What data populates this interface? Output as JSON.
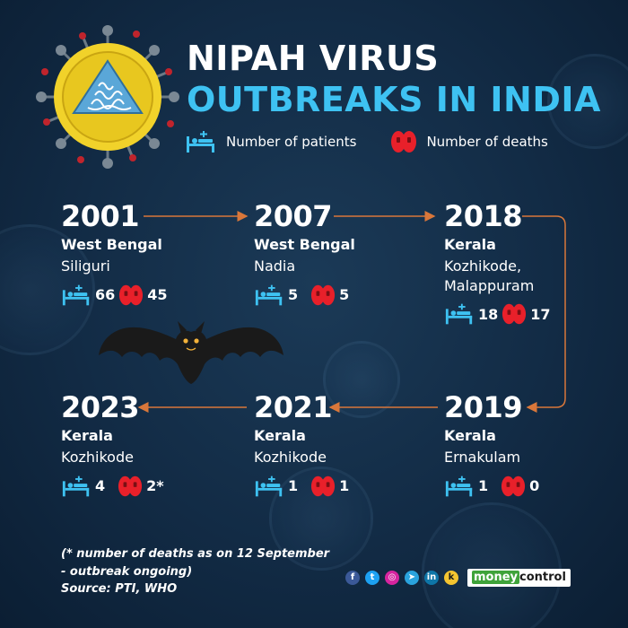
{
  "title": {
    "line1": "NIPAH VIRUS",
    "line2": "OUTBREAKS IN INDIA"
  },
  "legend": {
    "patients_label": "Number of patients",
    "deaths_label": "Number of deaths"
  },
  "outbreaks": [
    {
      "year": "2001",
      "state": "West Bengal",
      "place": "Siliguri",
      "patients": "66",
      "deaths": "45"
    },
    {
      "year": "2007",
      "state": "West Bengal",
      "place": "Nadia",
      "patients": "5",
      "deaths": "5"
    },
    {
      "year": "2018",
      "state": "Kerala",
      "place_line1": "Kozhikode,",
      "place_line2": "Malappuram",
      "patients": "18",
      "deaths": "17"
    },
    {
      "year": "2019",
      "state": "Kerala",
      "place": "Ernakulam",
      "patients": "1",
      "deaths": "0"
    },
    {
      "year": "2021",
      "state": "Kerala",
      "place": "Kozhikode",
      "patients": "1",
      "deaths": "1"
    },
    {
      "year": "2023",
      "state": "Kerala",
      "place": "Kozhikode",
      "patients": "4",
      "deaths": "2*"
    }
  ],
  "footnote": {
    "line1": "(* number of deaths as on 12 September",
    "line2": "- outbreak ongoing)",
    "source": "Source: PTI, WHO"
  },
  "social": {
    "facebook": "f",
    "twitter": "t",
    "instagram": "◎",
    "telegram": "➤",
    "linkedin": "in",
    "koo": "k"
  },
  "brand": {
    "part1": "money",
    "part2": "control"
  },
  "colors": {
    "title_accent": "#3ec2f2",
    "patient_icon": "#3ec2f2",
    "death_icon": "#e8202a",
    "arrow": "#d9773a",
    "background": "#122b45"
  }
}
